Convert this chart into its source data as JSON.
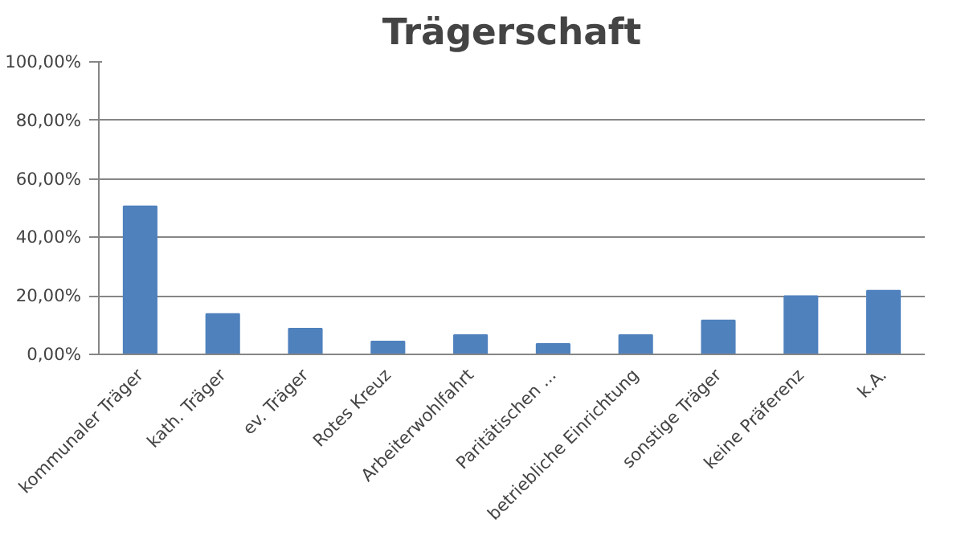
{
  "chart_data": {
    "type": "bar",
    "title": "Trägerschaft",
    "categories": [
      "kommunaler Träger",
      "kath. Träger",
      "ev. Träger",
      "Rotes Kreuz",
      "Arbeiterwohlfahrt",
      "Paritätischen ...",
      "betriebliche Einrichtung",
      "sonstige Träger",
      "keine Präferenz",
      "k.A."
    ],
    "values": [
      50.6,
      13.8,
      8.8,
      4.4,
      6.6,
      3.6,
      6.6,
      11.6,
      19.9,
      21.8
    ],
    "color": "#4f81bd",
    "ylim": [
      0,
      100
    ],
    "yticks": [
      {
        "value": 0,
        "label": "0,00%"
      },
      {
        "value": 20,
        "label": "20,00%"
      },
      {
        "value": 40,
        "label": "40,00%"
      },
      {
        "value": 60,
        "label": "60,00%"
      },
      {
        "value": 80,
        "label": "80,00%"
      },
      {
        "value": 100,
        "label": "100,00%"
      }
    ],
    "grid": "y"
  }
}
